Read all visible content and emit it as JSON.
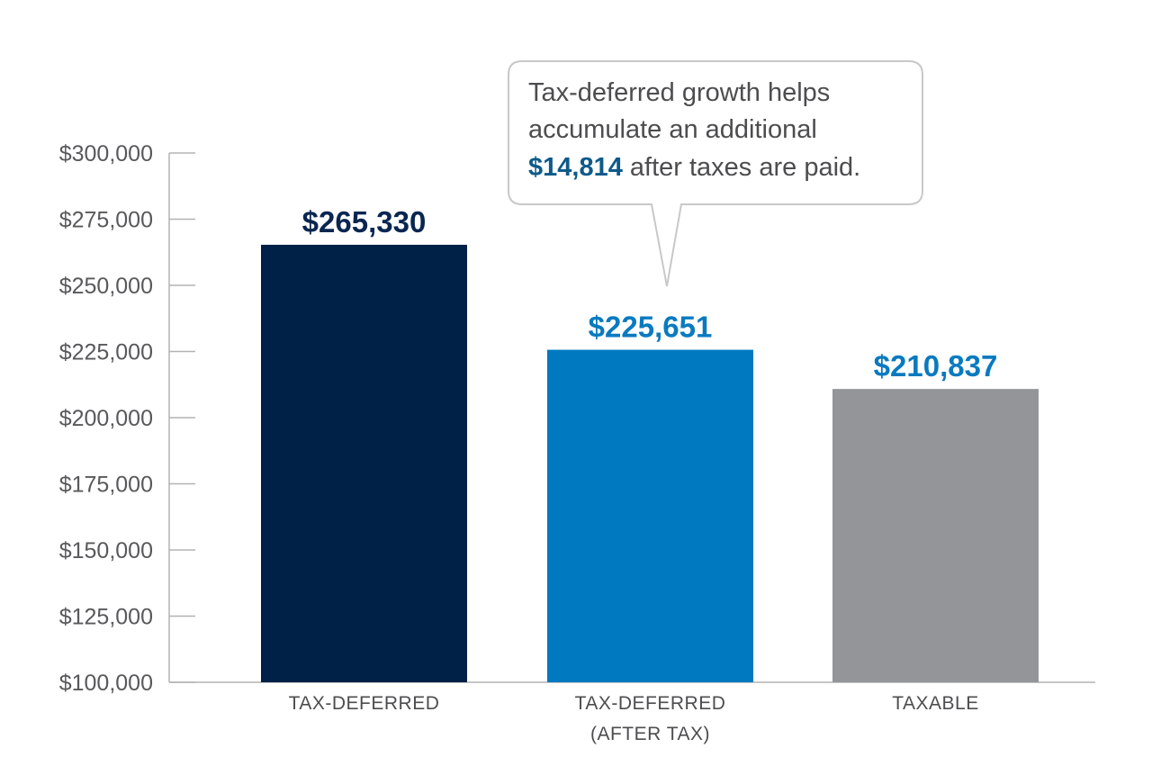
{
  "chart_data": {
    "type": "bar",
    "title": "",
    "xlabel": "",
    "ylabel": "",
    "ylim": [
      100000,
      300000
    ],
    "yticks": [
      100000,
      125000,
      150000,
      175000,
      200000,
      225000,
      250000,
      275000,
      300000
    ],
    "ytick_labels": [
      "$100,000",
      "$125,000",
      "$150,000",
      "$175,000",
      "$200,000",
      "$225,000",
      "$250,000",
      "$275,000",
      "$300,000"
    ],
    "categories": [
      [
        "TAX-DEFERRED"
      ],
      [
        "TAX-DEFERRED",
        "(AFTER TAX)"
      ],
      [
        "TAXABLE"
      ]
    ],
    "values": [
      265330,
      225651,
      210837
    ],
    "value_labels": [
      "$265,330",
      "$225,651",
      "$210,837"
    ],
    "bar_colors": [
      "#002147",
      "#0079c1",
      "#939598"
    ],
    "value_label_colors": [
      "#0a2650",
      "#0a7ac0",
      "#0a7ac0"
    ],
    "grid": false,
    "annotation": {
      "lines": [
        "Tax-deferred growth helps",
        "accumulate an additional"
      ],
      "highlight": "$14,814",
      "highlight_color": "#0e5a8a",
      "tail": " after taxes are paid."
    }
  }
}
